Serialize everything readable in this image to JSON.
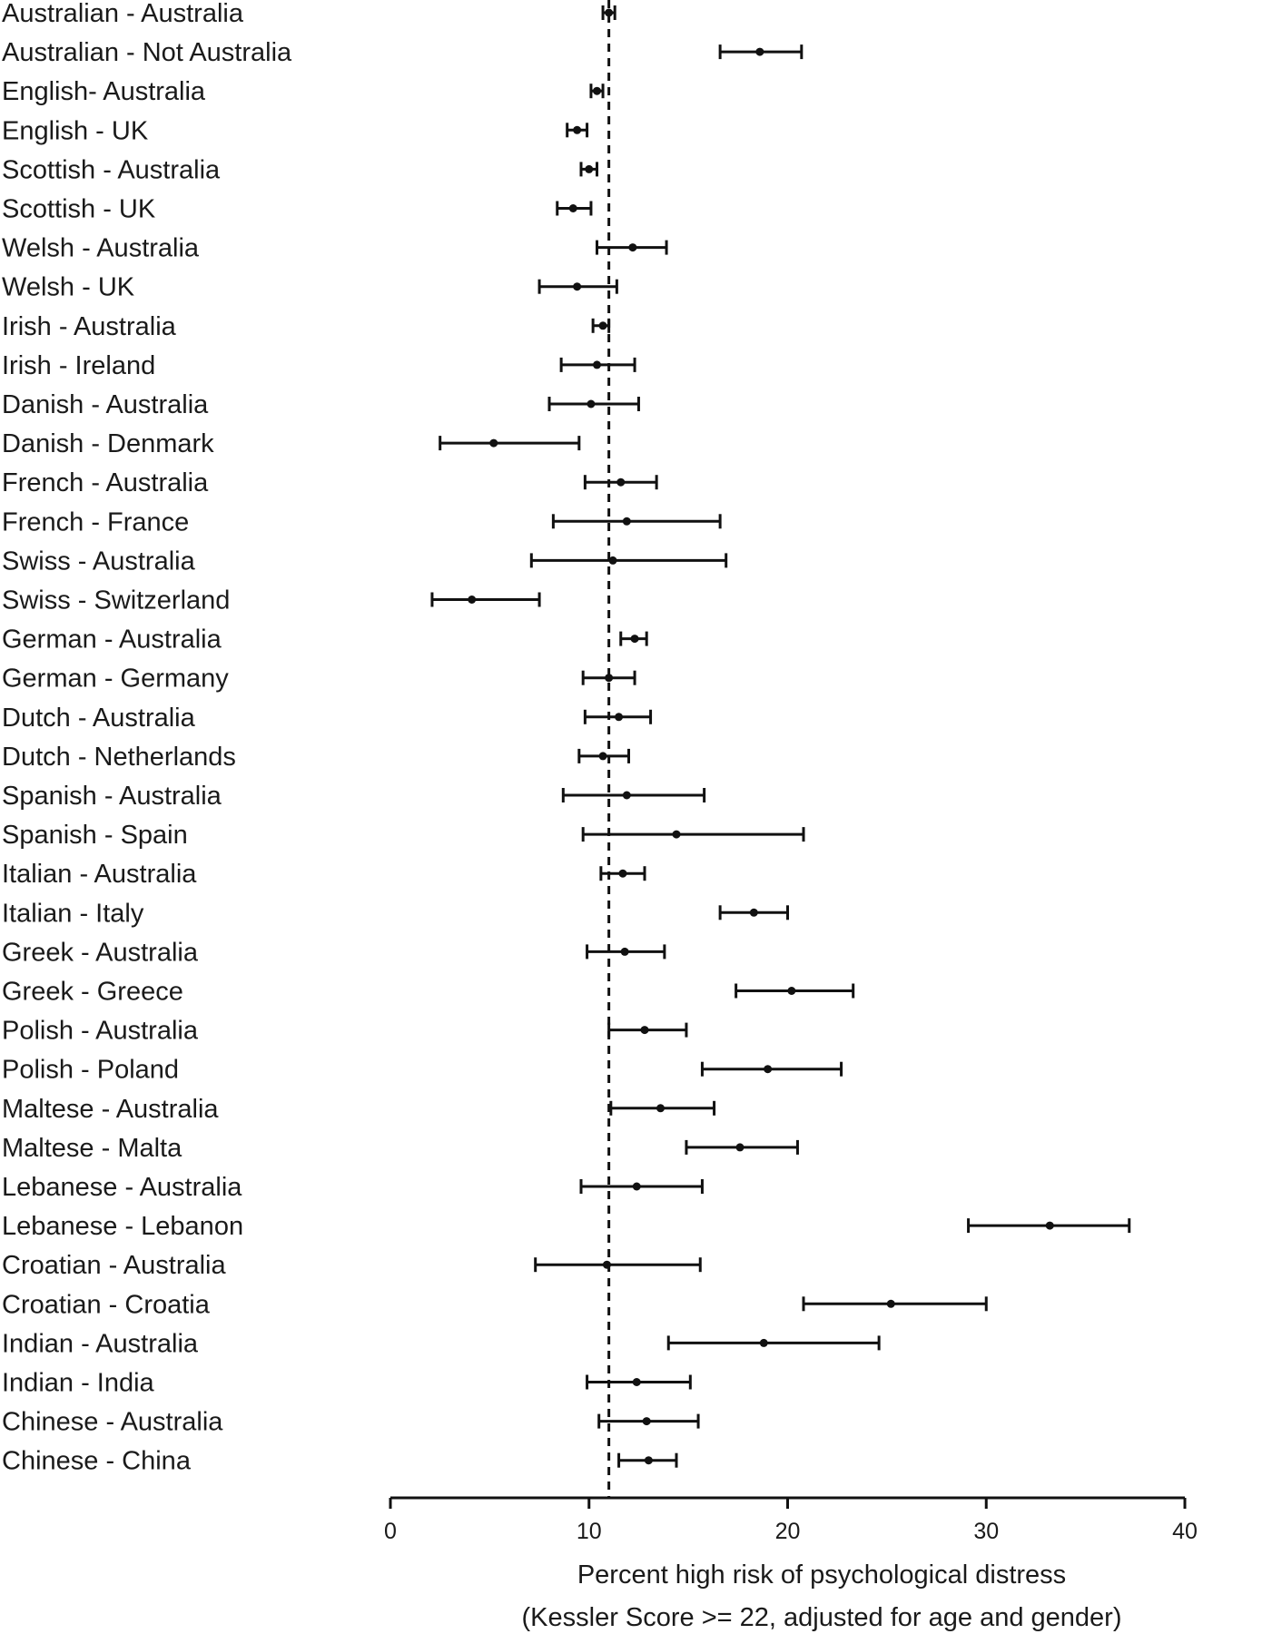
{
  "chart_data": {
    "type": "forest",
    "xlabel_line1": "Percent high risk of psychological distress",
    "xlabel_line2": "(Kessler Score >= 22, adjusted for age and gender)",
    "xlim": [
      0,
      40
    ],
    "xticks": [
      0,
      10,
      20,
      30,
      40
    ],
    "reference_line": 11.0,
    "rows": [
      {
        "label": "Australian - Australia",
        "estimate": 11.0,
        "lower": 10.7,
        "upper": 11.3
      },
      {
        "label": "Australian - Not Australia",
        "estimate": 18.6,
        "lower": 16.6,
        "upper": 20.7
      },
      {
        "label": "English- Australia",
        "estimate": 10.4,
        "lower": 10.1,
        "upper": 10.7
      },
      {
        "label": "English - UK",
        "estimate": 9.4,
        "lower": 8.9,
        "upper": 9.9
      },
      {
        "label": "Scottish - Australia",
        "estimate": 10.0,
        "lower": 9.6,
        "upper": 10.4
      },
      {
        "label": "Scottish - UK",
        "estimate": 9.2,
        "lower": 8.4,
        "upper": 10.1
      },
      {
        "label": "Welsh - Australia",
        "estimate": 12.2,
        "lower": 10.4,
        "upper": 13.9
      },
      {
        "label": "Welsh - UK",
        "estimate": 9.4,
        "lower": 7.5,
        "upper": 11.4
      },
      {
        "label": "Irish - Australia",
        "estimate": 10.7,
        "lower": 10.2,
        "upper": 11.0
      },
      {
        "label": "Irish - Ireland",
        "estimate": 10.4,
        "lower": 8.6,
        "upper": 12.3
      },
      {
        "label": "Danish - Australia",
        "estimate": 10.1,
        "lower": 8.0,
        "upper": 12.5
      },
      {
        "label": "Danish - Denmark",
        "estimate": 5.2,
        "lower": 2.5,
        "upper": 9.5
      },
      {
        "label": "French - Australia",
        "estimate": 11.6,
        "lower": 9.8,
        "upper": 13.4
      },
      {
        "label": "French - France",
        "estimate": 11.9,
        "lower": 8.2,
        "upper": 16.6
      },
      {
        "label": "Swiss - Australia",
        "estimate": 11.2,
        "lower": 7.1,
        "upper": 16.9
      },
      {
        "label": "Swiss - Switzerland",
        "estimate": 4.1,
        "lower": 2.1,
        "upper": 7.5
      },
      {
        "label": "German - Australia",
        "estimate": 12.3,
        "lower": 11.6,
        "upper": 12.9
      },
      {
        "label": "German - Germany",
        "estimate": 11.0,
        "lower": 9.7,
        "upper": 12.3
      },
      {
        "label": "Dutch - Australia",
        "estimate": 11.5,
        "lower": 9.8,
        "upper": 13.1
      },
      {
        "label": "Dutch - Netherlands",
        "estimate": 10.7,
        "lower": 9.5,
        "upper": 12.0
      },
      {
        "label": "Spanish - Australia",
        "estimate": 11.9,
        "lower": 8.7,
        "upper": 15.8
      },
      {
        "label": "Spanish - Spain",
        "estimate": 14.4,
        "lower": 9.7,
        "upper": 20.8
      },
      {
        "label": "Italian - Australia",
        "estimate": 11.7,
        "lower": 10.6,
        "upper": 12.8
      },
      {
        "label": "Italian - Italy",
        "estimate": 18.3,
        "lower": 16.6,
        "upper": 20.0
      },
      {
        "label": "Greek - Australia",
        "estimate": 11.8,
        "lower": 9.9,
        "upper": 13.8
      },
      {
        "label": "Greek - Greece",
        "estimate": 20.2,
        "lower": 17.4,
        "upper": 23.3
      },
      {
        "label": "Polish - Australia",
        "estimate": 12.8,
        "lower": 11.0,
        "upper": 14.9
      },
      {
        "label": "Polish - Poland",
        "estimate": 19.0,
        "lower": 15.7,
        "upper": 22.7
      },
      {
        "label": "Maltese - Australia",
        "estimate": 13.6,
        "lower": 11.1,
        "upper": 16.3
      },
      {
        "label": "Maltese - Malta",
        "estimate": 17.6,
        "lower": 14.9,
        "upper": 20.5
      },
      {
        "label": "Lebanese - Australia",
        "estimate": 12.4,
        "lower": 9.6,
        "upper": 15.7
      },
      {
        "label": "Lebanese - Lebanon",
        "estimate": 33.2,
        "lower": 29.1,
        "upper": 37.2
      },
      {
        "label": "Croatian - Australia",
        "estimate": 10.9,
        "lower": 7.3,
        "upper": 15.6
      },
      {
        "label": "Croatian - Croatia",
        "estimate": 25.2,
        "lower": 20.8,
        "upper": 30.0
      },
      {
        "label": "Indian - Australia",
        "estimate": 18.8,
        "lower": 14.0,
        "upper": 24.6
      },
      {
        "label": "Indian - India",
        "estimate": 12.4,
        "lower": 9.9,
        "upper": 15.1
      },
      {
        "label": "Chinese - Australia",
        "estimate": 12.9,
        "lower": 10.5,
        "upper": 15.5
      },
      {
        "label": "Chinese - China",
        "estimate": 13.0,
        "lower": 11.5,
        "upper": 14.4
      }
    ]
  }
}
